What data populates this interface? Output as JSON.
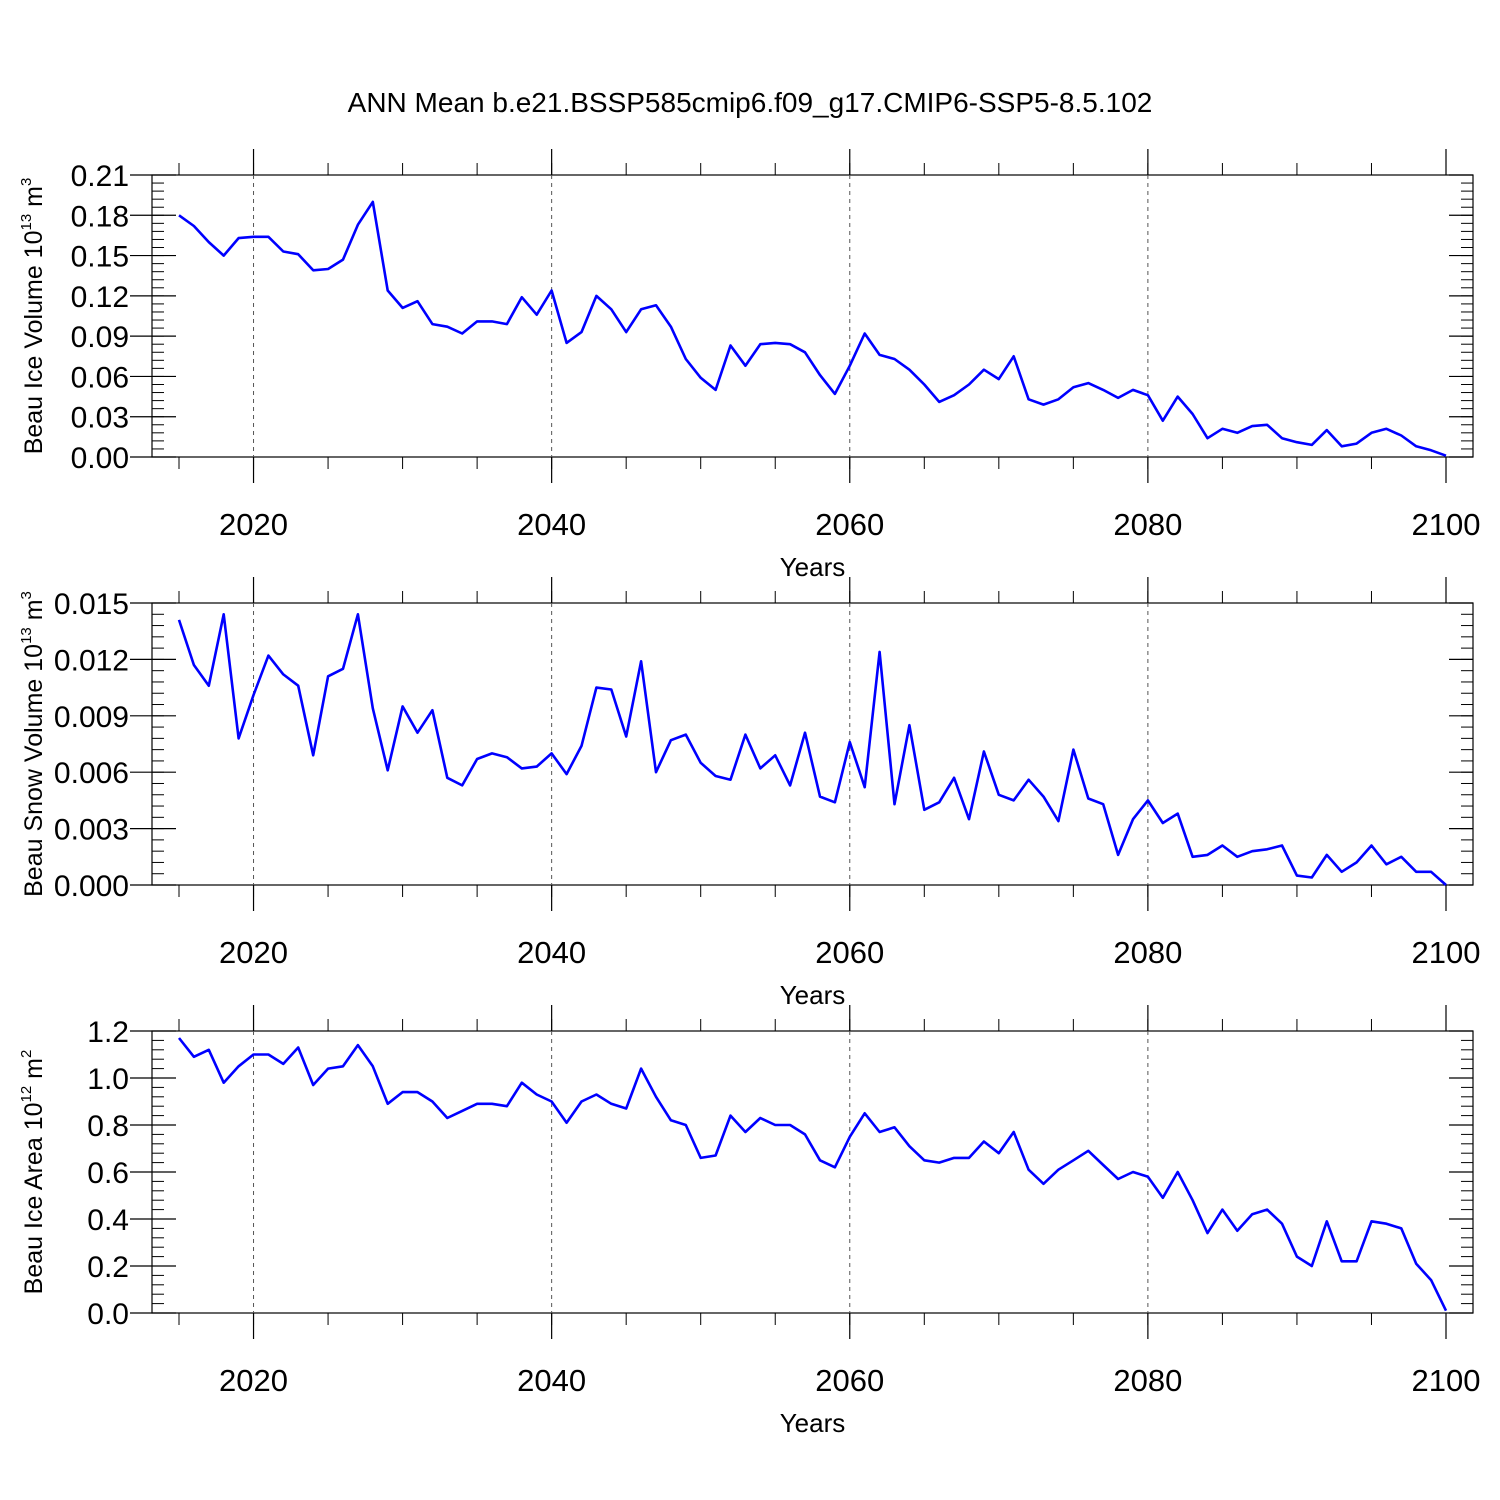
{
  "figure": {
    "title": "ANN Mean b.e21.BSSP585cmip6.f09_g17.CMIP6-SSP5-8.5.102"
  },
  "colors": {
    "line": "#0000ff",
    "axis": "#000000",
    "grid": "#555555",
    "background": "#ffffff"
  },
  "chart_data": [
    {
      "type": "line",
      "name": "ice-volume",
      "ylabel": "Beau Ice Volume 10",
      "ylabel_exp": "13",
      "ylabel_unit": "m",
      "ylabel_unit_exp": "3",
      "xlabel": "Years",
      "xlim": [
        2015,
        2100
      ],
      "ylim": [
        0,
        0.21
      ],
      "xticks": [
        2020,
        2040,
        2060,
        2080,
        2100
      ],
      "xtick_labels": [
        "2020",
        "2040",
        "2060",
        "2080",
        "2100"
      ],
      "yticks": [
        0,
        0.03,
        0.06,
        0.09,
        0.12,
        0.15,
        0.18,
        0.21
      ],
      "ytick_labels": [
        "0.00",
        "0.03",
        "0.06",
        "0.09",
        "0.12",
        "0.15",
        "0.18",
        "0.21"
      ],
      "y_minor_step": 0.006,
      "grid_x": [
        2020,
        2040,
        2060,
        2080
      ],
      "x_start": 2015,
      "values": [
        0.18,
        0.172,
        0.16,
        0.15,
        0.163,
        0.164,
        0.164,
        0.153,
        0.151,
        0.139,
        0.14,
        0.147,
        0.173,
        0.19,
        0.124,
        0.111,
        0.116,
        0.099,
        0.097,
        0.092,
        0.101,
        0.101,
        0.099,
        0.119,
        0.106,
        0.124,
        0.085,
        0.093,
        0.12,
        0.11,
        0.093,
        0.11,
        0.113,
        0.097,
        0.073,
        0.059,
        0.05,
        0.083,
        0.068,
        0.084,
        0.085,
        0.084,
        0.078,
        0.061,
        0.047,
        0.068,
        0.092,
        0.076,
        0.073,
        0.065,
        0.054,
        0.041,
        0.046,
        0.054,
        0.065,
        0.058,
        0.075,
        0.043,
        0.039,
        0.043,
        0.052,
        0.055,
        0.05,
        0.044,
        0.05,
        0.046,
        0.027,
        0.045,
        0.032,
        0.014,
        0.021,
        0.018,
        0.023,
        0.024,
        0.014,
        0.011,
        0.009,
        0.02,
        0.008,
        0.01,
        0.018,
        0.021,
        0.016,
        0.008,
        0.005,
        0.001
      ]
    },
    {
      "type": "line",
      "name": "snow-volume",
      "ylabel": "Beau Snow Volume 10",
      "ylabel_exp": "13",
      "ylabel_unit": "m",
      "ylabel_unit_exp": "3",
      "xlabel": "Years",
      "xlim": [
        2015,
        2100
      ],
      "ylim": [
        0,
        0.015
      ],
      "xticks": [
        2020,
        2040,
        2060,
        2080,
        2100
      ],
      "xtick_labels": [
        "2020",
        "2040",
        "2060",
        "2080",
        "2100"
      ],
      "yticks": [
        0,
        0.003,
        0.006,
        0.009,
        0.012,
        0.015
      ],
      "ytick_labels": [
        "0.000",
        "0.003",
        "0.006",
        "0.009",
        "0.012",
        "0.015"
      ],
      "y_minor_step": 0.0006,
      "grid_x": [
        2020,
        2040,
        2060,
        2080
      ],
      "x_start": 2015,
      "values": [
        0.0141,
        0.0117,
        0.0106,
        0.0144,
        0.0078,
        0.0101,
        0.0122,
        0.0112,
        0.0106,
        0.0069,
        0.0111,
        0.0115,
        0.0144,
        0.0094,
        0.0061,
        0.0095,
        0.0081,
        0.0093,
        0.0057,
        0.0053,
        0.0067,
        0.007,
        0.0068,
        0.0062,
        0.0063,
        0.007,
        0.0059,
        0.0074,
        0.0105,
        0.0104,
        0.0079,
        0.0119,
        0.006,
        0.0077,
        0.008,
        0.0065,
        0.0058,
        0.0056,
        0.008,
        0.0062,
        0.0069,
        0.0053,
        0.0081,
        0.0047,
        0.0044,
        0.0076,
        0.0052,
        0.0124,
        0.0043,
        0.0085,
        0.004,
        0.0044,
        0.0057,
        0.0035,
        0.0071,
        0.0048,
        0.0045,
        0.0056,
        0.0047,
        0.0034,
        0.0072,
        0.0046,
        0.0043,
        0.0016,
        0.0035,
        0.0045,
        0.0033,
        0.0038,
        0.0015,
        0.0016,
        0.0021,
        0.0015,
        0.0018,
        0.0019,
        0.0021,
        0.0005,
        0.0004,
        0.0016,
        0.0007,
        0.0012,
        0.0021,
        0.0011,
        0.0015,
        0.0007,
        0.0007,
        0.0
      ]
    },
    {
      "type": "line",
      "name": "ice-area",
      "ylabel": "Beau Ice Area 10",
      "ylabel_exp": "12",
      "ylabel_unit": "m",
      "ylabel_unit_exp": "2",
      "xlabel": "Years",
      "xlim": [
        2015,
        2100
      ],
      "ylim": [
        0,
        1.2
      ],
      "xticks": [
        2020,
        2040,
        2060,
        2080,
        2100
      ],
      "xtick_labels": [
        "2020",
        "2040",
        "2060",
        "2080",
        "2100"
      ],
      "yticks": [
        0,
        0.2,
        0.4,
        0.6,
        0.8,
        1.0,
        1.2
      ],
      "ytick_labels": [
        "0.0",
        "0.2",
        "0.4",
        "0.6",
        "0.8",
        "1.0",
        "1.2"
      ],
      "y_minor_step": 0.04,
      "grid_x": [
        2020,
        2040,
        2060,
        2080
      ],
      "x_start": 2015,
      "values": [
        1.17,
        1.09,
        1.12,
        0.98,
        1.05,
        1.1,
        1.1,
        1.06,
        1.13,
        0.97,
        1.04,
        1.05,
        1.14,
        1.05,
        0.89,
        0.94,
        0.94,
        0.9,
        0.83,
        0.86,
        0.89,
        0.89,
        0.88,
        0.98,
        0.93,
        0.9,
        0.81,
        0.9,
        0.93,
        0.89,
        0.87,
        1.04,
        0.92,
        0.82,
        0.8,
        0.66,
        0.67,
        0.84,
        0.77,
        0.83,
        0.8,
        0.8,
        0.76,
        0.65,
        0.62,
        0.75,
        0.85,
        0.77,
        0.79,
        0.71,
        0.65,
        0.64,
        0.66,
        0.66,
        0.73,
        0.68,
        0.77,
        0.61,
        0.55,
        0.61,
        0.65,
        0.69,
        0.63,
        0.57,
        0.6,
        0.58,
        0.49,
        0.6,
        0.48,
        0.34,
        0.44,
        0.35,
        0.42,
        0.44,
        0.38,
        0.24,
        0.2,
        0.39,
        0.22,
        0.22,
        0.39,
        0.38,
        0.36,
        0.21,
        0.14,
        0.01
      ]
    }
  ]
}
